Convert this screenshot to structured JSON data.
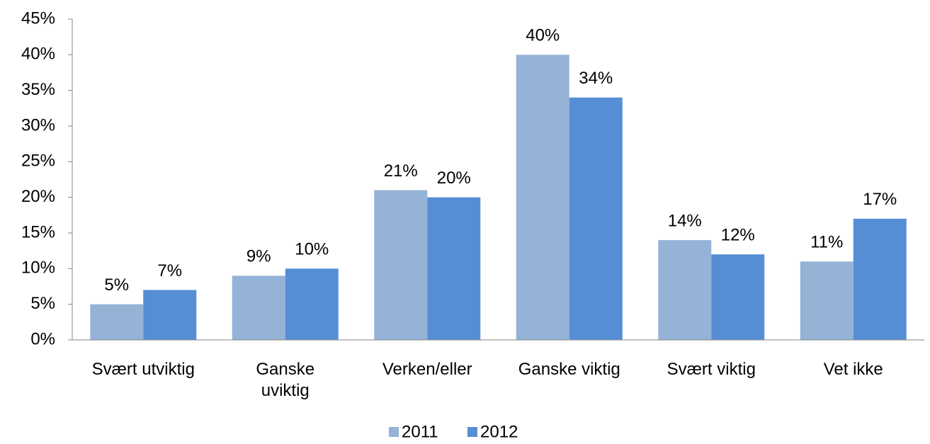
{
  "chart_data": {
    "type": "bar",
    "categories": [
      "Svært utviktig",
      "Ganske\nuviktig",
      "Verken/eller",
      "Ganske viktig",
      "Svært viktig",
      "Vet ikke"
    ],
    "series": [
      {
        "name": "2011",
        "color": "#95b3d7",
        "values": [
          5,
          9,
          21,
          40,
          14,
          11
        ],
        "value_labels": [
          "5%",
          "9%",
          "21%",
          "40%",
          "14%",
          "11%"
        ]
      },
      {
        "name": "2012",
        "color": "#558ed5",
        "values": [
          7,
          10,
          20,
          34,
          12,
          17
        ],
        "value_labels": [
          "7%",
          "10%",
          "20%",
          "34%",
          "12%",
          "17%"
        ]
      }
    ],
    "ylim": [
      0,
      45
    ],
    "yticks": [
      {
        "value": 0,
        "label": "0%"
      },
      {
        "value": 5,
        "label": "5%"
      },
      {
        "value": 10,
        "label": "10%"
      },
      {
        "value": 15,
        "label": "15%"
      },
      {
        "value": 20,
        "label": "20%"
      },
      {
        "value": 25,
        "label": "25%"
      },
      {
        "value": 30,
        "label": "30%"
      },
      {
        "value": 35,
        "label": "35%"
      },
      {
        "value": 40,
        "label": "40%"
      },
      {
        "value": 45,
        "label": "45%"
      }
    ],
    "grid": false,
    "legend": "bottom"
  }
}
